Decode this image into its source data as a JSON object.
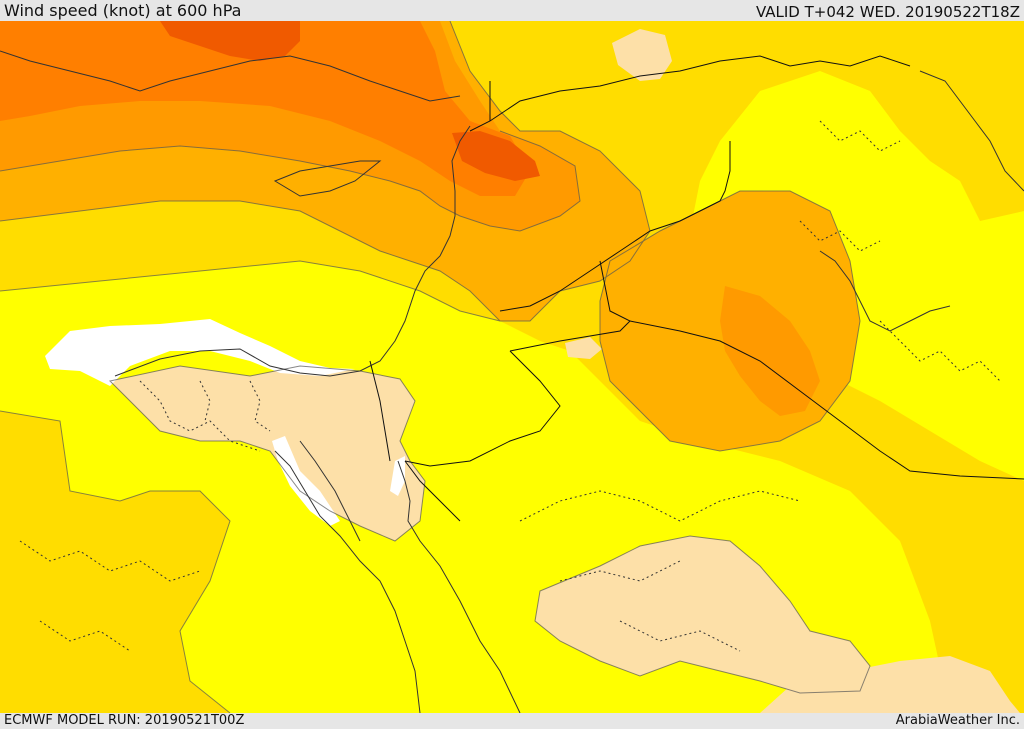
{
  "header": {
    "title": "Wind speed (knot) at 600 hPa",
    "valid": "VALID T+042 WED. 20190522T18Z"
  },
  "footer": {
    "model_run": "ECMWF MODEL RUN: 20190521T00Z",
    "credit": "ArabiaWeather Inc."
  },
  "colors": {
    "very_low": "#ffffff",
    "low": "#fde0a8",
    "moderate": "#ffff00",
    "elevated": "#ffdd00",
    "high": "#ffb000",
    "higher": "#ff9a00",
    "strong": "#ff7f00",
    "very_strong": "#f05a00",
    "coastline": "#333333",
    "border": "#111111"
  }
}
